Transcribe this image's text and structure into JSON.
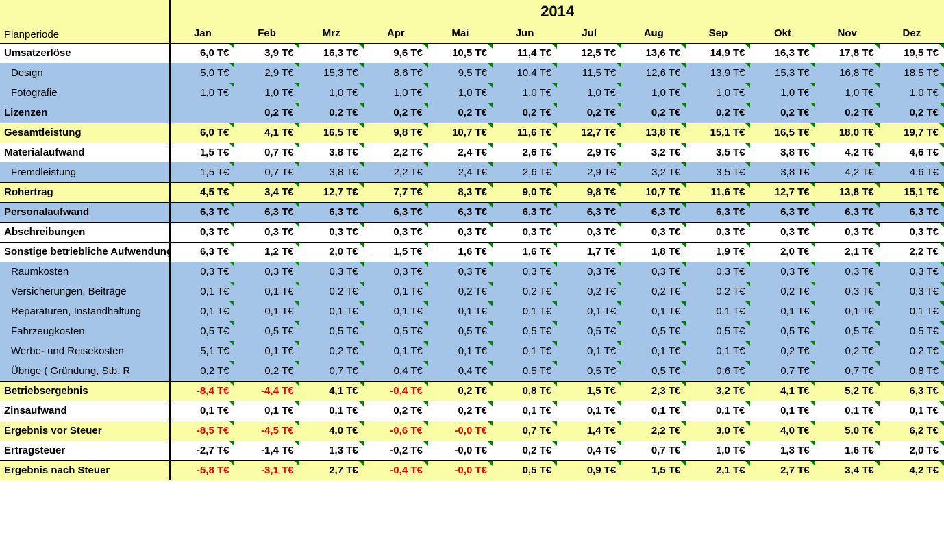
{
  "title_year": "2014",
  "period_label": "Planperiode",
  "months": [
    "Jan",
    "Feb",
    "Mrz",
    "Apr",
    "Mai",
    "Jun",
    "Jul",
    "Aug",
    "Sep",
    "Okt",
    "Nov",
    "Dez"
  ],
  "colors": {
    "header_yellow": "#fbfca6",
    "cell_blue": "#a4c4e8",
    "negative": "#e40000",
    "tick": "#008000"
  },
  "rows": [
    {
      "label": "Umsatzerlöse",
      "bold": true,
      "indent": false,
      "bg": "white",
      "tick": true,
      "topBorder": false,
      "values": [
        "6,0 T€",
        "3,9 T€",
        "16,3 T€",
        "9,6 T€",
        "10,5 T€",
        "11,4 T€",
        "12,5 T€",
        "13,6 T€",
        "14,9 T€",
        "16,3 T€",
        "17,8 T€",
        "19,5 T€"
      ],
      "neg": [
        false,
        false,
        false,
        false,
        false,
        false,
        false,
        false,
        false,
        false,
        false,
        false
      ]
    },
    {
      "label": "Design",
      "bold": false,
      "indent": true,
      "bg": "blue",
      "tick": true,
      "topBorder": false,
      "values": [
        "5,0 T€",
        "2,9 T€",
        "15,3 T€",
        "8,6 T€",
        "9,5 T€",
        "10,4 T€",
        "11,5 T€",
        "12,6 T€",
        "13,9 T€",
        "15,3 T€",
        "16,8 T€",
        "18,5 T€"
      ],
      "neg": [
        false,
        false,
        false,
        false,
        false,
        false,
        false,
        false,
        false,
        false,
        false,
        false
      ]
    },
    {
      "label": "Fotografie",
      "bold": false,
      "indent": true,
      "bg": "blue",
      "tick": true,
      "topBorder": false,
      "values": [
        "1,0 T€",
        "1,0 T€",
        "1,0 T€",
        "1,0 T€",
        "1,0 T€",
        "1,0 T€",
        "1,0 T€",
        "1,0 T€",
        "1,0 T€",
        "1,0 T€",
        "1,0 T€",
        "1,0 T€"
      ],
      "neg": [
        false,
        false,
        false,
        false,
        false,
        false,
        false,
        false,
        false,
        false,
        false,
        false
      ]
    },
    {
      "label": "Lizenzen",
      "bold": true,
      "indent": false,
      "bg": "blue",
      "tick": true,
      "topBorder": false,
      "values": [
        "",
        "0,2 T€",
        "0,2 T€",
        "0,2 T€",
        "0,2 T€",
        "0,2 T€",
        "0,2 T€",
        "0,2 T€",
        "0,2 T€",
        "0,2 T€",
        "0,2 T€",
        "0,2 T€"
      ],
      "neg": [
        false,
        false,
        false,
        false,
        false,
        false,
        false,
        false,
        false,
        false,
        false,
        false
      ]
    },
    {
      "label": "Gesamtleistung",
      "bold": true,
      "indent": false,
      "bg": "yellow",
      "tick": true,
      "topBorder": true,
      "values": [
        "6,0 T€",
        "4,1 T€",
        "16,5 T€",
        "9,8 T€",
        "10,7 T€",
        "11,6 T€",
        "12,7 T€",
        "13,8 T€",
        "15,1 T€",
        "16,5 T€",
        "18,0 T€",
        "19,7 T€"
      ],
      "neg": [
        false,
        false,
        false,
        false,
        false,
        false,
        false,
        false,
        false,
        false,
        false,
        false
      ]
    },
    {
      "label": "Materialaufwand",
      "bold": true,
      "indent": false,
      "bg": "white",
      "tick": true,
      "topBorder": true,
      "values": [
        "1,5 T€",
        "0,7 T€",
        "3,8 T€",
        "2,2 T€",
        "2,4 T€",
        "2,6 T€",
        "2,9 T€",
        "3,2 T€",
        "3,5 T€",
        "3,8 T€",
        "4,2 T€",
        "4,6 T€"
      ],
      "neg": [
        false,
        false,
        false,
        false,
        false,
        false,
        false,
        false,
        false,
        false,
        false,
        false
      ]
    },
    {
      "label": "Fremdleistung",
      "bold": false,
      "indent": true,
      "bg": "blue",
      "tick": true,
      "topBorder": false,
      "values": [
        "1,5 T€",
        "0,7 T€",
        "3,8 T€",
        "2,2 T€",
        "2,4 T€",
        "2,6 T€",
        "2,9 T€",
        "3,2 T€",
        "3,5 T€",
        "3,8 T€",
        "4,2 T€",
        "4,6 T€"
      ],
      "neg": [
        false,
        false,
        false,
        false,
        false,
        false,
        false,
        false,
        false,
        false,
        false,
        false
      ]
    },
    {
      "label": "Rohertrag",
      "bold": true,
      "indent": false,
      "bg": "yellow",
      "tick": true,
      "topBorder": true,
      "values": [
        "4,5 T€",
        "3,4 T€",
        "12,7 T€",
        "7,7 T€",
        "8,3 T€",
        "9,0 T€",
        "9,8 T€",
        "10,7 T€",
        "11,6 T€",
        "12,7 T€",
        "13,8 T€",
        "15,1 T€"
      ],
      "neg": [
        false,
        false,
        false,
        false,
        false,
        false,
        false,
        false,
        false,
        false,
        false,
        false
      ]
    },
    {
      "label": "Personalaufwand",
      "bold": true,
      "indent": false,
      "bg": "blue",
      "tick": true,
      "topBorder": true,
      "values": [
        "6,3 T€",
        "6,3 T€",
        "6,3 T€",
        "6,3 T€",
        "6,3 T€",
        "6,3 T€",
        "6,3 T€",
        "6,3 T€",
        "6,3 T€",
        "6,3 T€",
        "6,3 T€",
        "6,3 T€"
      ],
      "neg": [
        false,
        false,
        false,
        false,
        false,
        false,
        false,
        false,
        false,
        false,
        false,
        false
      ]
    },
    {
      "label": "Abschreibungen",
      "bold": true,
      "indent": false,
      "bg": "white",
      "tick": true,
      "topBorder": true,
      "values": [
        "0,3 T€",
        "0,3 T€",
        "0,3 T€",
        "0,3 T€",
        "0,3 T€",
        "0,3 T€",
        "0,3 T€",
        "0,3 T€",
        "0,3 T€",
        "0,3 T€",
        "0,3 T€",
        "0,3 T€"
      ],
      "neg": [
        false,
        false,
        false,
        false,
        false,
        false,
        false,
        false,
        false,
        false,
        false,
        false
      ]
    },
    {
      "label": "Sonstige betriebliche Aufwendungen",
      "bold": true,
      "indent": false,
      "bg": "white",
      "tick": true,
      "topBorder": true,
      "values": [
        "6,3 T€",
        "1,2 T€",
        "2,0 T€",
        "1,5 T€",
        "1,6 T€",
        "1,6 T€",
        "1,7 T€",
        "1,8 T€",
        "1,9 T€",
        "2,0 T€",
        "2,1 T€",
        "2,2 T€"
      ],
      "neg": [
        false,
        false,
        false,
        false,
        false,
        false,
        false,
        false,
        false,
        false,
        false,
        false
      ]
    },
    {
      "label": "Raumkosten",
      "bold": false,
      "indent": true,
      "bg": "blue",
      "tick": true,
      "topBorder": false,
      "values": [
        "0,3 T€",
        "0,3 T€",
        "0,3 T€",
        "0,3 T€",
        "0,3 T€",
        "0,3 T€",
        "0,3 T€",
        "0,3 T€",
        "0,3 T€",
        "0,3 T€",
        "0,3 T€",
        "0,3 T€"
      ],
      "neg": [
        false,
        false,
        false,
        false,
        false,
        false,
        false,
        false,
        false,
        false,
        false,
        false
      ]
    },
    {
      "label": "Versicherungen, Beiträge",
      "bold": false,
      "indent": true,
      "bg": "blue",
      "tick": true,
      "topBorder": false,
      "values": [
        "0,1 T€",
        "0,1 T€",
        "0,2 T€",
        "0,1 T€",
        "0,2 T€",
        "0,2 T€",
        "0,2 T€",
        "0,2 T€",
        "0,2 T€",
        "0,2 T€",
        "0,3 T€",
        "0,3 T€"
      ],
      "neg": [
        false,
        false,
        false,
        false,
        false,
        false,
        false,
        false,
        false,
        false,
        false,
        false
      ]
    },
    {
      "label": "Reparaturen, Instandhaltung",
      "bold": false,
      "indent": true,
      "bg": "blue",
      "tick": true,
      "topBorder": false,
      "values": [
        "0,1 T€",
        "0,1 T€",
        "0,1 T€",
        "0,1 T€",
        "0,1 T€",
        "0,1 T€",
        "0,1 T€",
        "0,1 T€",
        "0,1 T€",
        "0,1 T€",
        "0,1 T€",
        "0,1 T€"
      ],
      "neg": [
        false,
        false,
        false,
        false,
        false,
        false,
        false,
        false,
        false,
        false,
        false,
        false
      ]
    },
    {
      "label": "Fahrzeugkosten",
      "bold": false,
      "indent": true,
      "bg": "blue",
      "tick": true,
      "topBorder": false,
      "values": [
        "0,5 T€",
        "0,5 T€",
        "0,5 T€",
        "0,5 T€",
        "0,5 T€",
        "0,5 T€",
        "0,5 T€",
        "0,5 T€",
        "0,5 T€",
        "0,5 T€",
        "0,5 T€",
        "0,5 T€"
      ],
      "neg": [
        false,
        false,
        false,
        false,
        false,
        false,
        false,
        false,
        false,
        false,
        false,
        false
      ]
    },
    {
      "label": "Werbe- und Reisekosten",
      "bold": false,
      "indent": true,
      "bg": "blue",
      "tick": true,
      "topBorder": false,
      "values": [
        "5,1 T€",
        "0,1 T€",
        "0,2 T€",
        "0,1 T€",
        "0,1 T€",
        "0,1 T€",
        "0,1 T€",
        "0,1 T€",
        "0,1 T€",
        "0,2 T€",
        "0,2 T€",
        "0,2 T€"
      ],
      "neg": [
        false,
        false,
        false,
        false,
        false,
        false,
        false,
        false,
        false,
        false,
        false,
        false
      ]
    },
    {
      "label": "Übrige ( Gründung, Stb, R",
      "bold": false,
      "indent": true,
      "bg": "blue",
      "tick": true,
      "topBorder": false,
      "values": [
        "0,2 T€",
        "0,2 T€",
        "0,7 T€",
        "0,4 T€",
        "0,4 T€",
        "0,5 T€",
        "0,5 T€",
        "0,5 T€",
        "0,6 T€",
        "0,7 T€",
        "0,7 T€",
        "0,8 T€"
      ],
      "neg": [
        false,
        false,
        false,
        false,
        false,
        false,
        false,
        false,
        false,
        false,
        false,
        false
      ]
    },
    {
      "label": "Betriebsergebnis",
      "bold": true,
      "indent": false,
      "bg": "yellow",
      "tick": true,
      "topBorder": true,
      "values": [
        "-8,4 T€",
        "-4,4 T€",
        "4,1 T€",
        "-0,4 T€",
        "0,2 T€",
        "0,8 T€",
        "1,5 T€",
        "2,3 T€",
        "3,2 T€",
        "4,1 T€",
        "5,2 T€",
        "6,3 T€"
      ],
      "neg": [
        true,
        true,
        false,
        true,
        false,
        false,
        false,
        false,
        false,
        false,
        false,
        false
      ]
    },
    {
      "label": "Zinsaufwand",
      "bold": true,
      "indent": false,
      "bg": "white",
      "tick": true,
      "topBorder": true,
      "values": [
        "0,1 T€",
        "0,1 T€",
        "0,1 T€",
        "0,2 T€",
        "0,2 T€",
        "0,1 T€",
        "0,1 T€",
        "0,1 T€",
        "0,1 T€",
        "0,1 T€",
        "0,1 T€",
        "0,1 T€"
      ],
      "neg": [
        false,
        false,
        false,
        false,
        false,
        false,
        false,
        false,
        false,
        false,
        false,
        false
      ]
    },
    {
      "label": "Ergebnis vor Steuer",
      "bold": true,
      "indent": false,
      "bg": "yellow",
      "tick": true,
      "topBorder": true,
      "values": [
        "-8,5 T€",
        "-4,5 T€",
        "4,0 T€",
        "-0,6 T€",
        "-0,0 T€",
        "0,7 T€",
        "1,4 T€",
        "2,2 T€",
        "3,0 T€",
        "4,0 T€",
        "5,0 T€",
        "6,2 T€"
      ],
      "neg": [
        true,
        true,
        false,
        true,
        true,
        false,
        false,
        false,
        false,
        false,
        false,
        false
      ]
    },
    {
      "label": "Ertragsteuer",
      "bold": true,
      "indent": false,
      "bg": "white",
      "tick": true,
      "topBorder": true,
      "values": [
        "-2,7 T€",
        "-1,4 T€",
        "1,3 T€",
        "-0,2 T€",
        "-0,0 T€",
        "0,2 T€",
        "0,4 T€",
        "0,7 T€",
        "1,0 T€",
        "1,3 T€",
        "1,6 T€",
        "2,0 T€"
      ],
      "neg": [
        false,
        false,
        false,
        false,
        false,
        false,
        false,
        false,
        false,
        false,
        false,
        false
      ]
    },
    {
      "label": "Ergebnis nach Steuer",
      "bold": true,
      "indent": false,
      "bg": "yellow",
      "tick": true,
      "topBorder": true,
      "values": [
        "-5,8 T€",
        "-3,1 T€",
        "2,7 T€",
        "-0,4 T€",
        "-0,0 T€",
        "0,5 T€",
        "0,9 T€",
        "1,5 T€",
        "2,1 T€",
        "2,7 T€",
        "3,4 T€",
        "4,2 T€"
      ],
      "neg": [
        true,
        true,
        false,
        true,
        true,
        false,
        false,
        false,
        false,
        false,
        false,
        false
      ]
    }
  ]
}
